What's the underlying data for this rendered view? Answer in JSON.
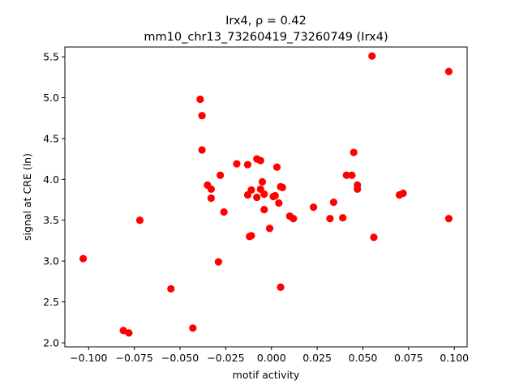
{
  "chart_data": {
    "type": "scatter",
    "title": "Irx4, ρ = 0.42",
    "subtitle": "mm10_chr13_73260419_73260749 (Irx4)",
    "xlabel": "motif activity",
    "ylabel": "signal at CRE (ln)",
    "xlim": [
      -0.113,
      0.107
    ],
    "ylim": [
      1.95,
      5.62
    ],
    "x_ticks": [
      -0.1,
      -0.075,
      -0.05,
      -0.025,
      0.0,
      0.025,
      0.05,
      0.075,
      0.1
    ],
    "x_tick_labels": [
      "−0.100",
      "−0.075",
      "−0.050",
      "−0.025",
      "0.000",
      "0.025",
      "0.050",
      "0.075",
      "0.100"
    ],
    "y_ticks": [
      2.0,
      2.5,
      3.0,
      3.5,
      4.0,
      4.5,
      5.0,
      5.5
    ],
    "y_tick_labels": [
      "2.0",
      "2.5",
      "3.0",
      "3.5",
      "4.0",
      "4.5",
      "5.0",
      "5.5"
    ],
    "grid": false,
    "marker_color": "#ff0000",
    "points": [
      {
        "x": -0.103,
        "y": 3.03
      },
      {
        "x": -0.081,
        "y": 2.15
      },
      {
        "x": -0.078,
        "y": 2.12
      },
      {
        "x": -0.072,
        "y": 3.5
      },
      {
        "x": -0.055,
        "y": 2.66
      },
      {
        "x": -0.043,
        "y": 2.18
      },
      {
        "x": -0.039,
        "y": 4.98
      },
      {
        "x": -0.038,
        "y": 4.78
      },
      {
        "x": -0.038,
        "y": 4.36
      },
      {
        "x": -0.035,
        "y": 3.93
      },
      {
        "x": -0.033,
        "y": 3.77
      },
      {
        "x": -0.033,
        "y": 3.88
      },
      {
        "x": -0.029,
        "y": 2.99
      },
      {
        "x": -0.028,
        "y": 4.05
      },
      {
        "x": -0.026,
        "y": 3.6
      },
      {
        "x": -0.019,
        "y": 4.19
      },
      {
        "x": -0.013,
        "y": 4.18
      },
      {
        "x": -0.013,
        "y": 3.81
      },
      {
        "x": -0.012,
        "y": 3.3
      },
      {
        "x": -0.011,
        "y": 3.31
      },
      {
        "x": -0.011,
        "y": 3.87
      },
      {
        "x": -0.008,
        "y": 3.78
      },
      {
        "x": -0.008,
        "y": 4.25
      },
      {
        "x": -0.006,
        "y": 4.23
      },
      {
        "x": -0.006,
        "y": 3.88
      },
      {
        "x": -0.005,
        "y": 3.97
      },
      {
        "x": -0.004,
        "y": 3.82
      },
      {
        "x": -0.004,
        "y": 3.63
      },
      {
        "x": -0.001,
        "y": 3.4
      },
      {
        "x": 0.001,
        "y": 3.79
      },
      {
        "x": 0.002,
        "y": 3.8
      },
      {
        "x": 0.003,
        "y": 4.15
      },
      {
        "x": 0.004,
        "y": 3.71
      },
      {
        "x": 0.005,
        "y": 2.68
      },
      {
        "x": 0.005,
        "y": 3.91
      },
      {
        "x": 0.006,
        "y": 3.9
      },
      {
        "x": 0.01,
        "y": 3.55
      },
      {
        "x": 0.012,
        "y": 3.52
      },
      {
        "x": 0.023,
        "y": 3.66
      },
      {
        "x": 0.032,
        "y": 3.52
      },
      {
        "x": 0.034,
        "y": 3.72
      },
      {
        "x": 0.039,
        "y": 3.53
      },
      {
        "x": 0.041,
        "y": 4.05
      },
      {
        "x": 0.044,
        "y": 4.05
      },
      {
        "x": 0.045,
        "y": 4.33
      },
      {
        "x": 0.047,
        "y": 3.93
      },
      {
        "x": 0.047,
        "y": 3.88
      },
      {
        "x": 0.055,
        "y": 5.51
      },
      {
        "x": 0.056,
        "y": 3.29
      },
      {
        "x": 0.07,
        "y": 3.81
      },
      {
        "x": 0.072,
        "y": 3.83
      },
      {
        "x": 0.097,
        "y": 5.32
      },
      {
        "x": 0.097,
        "y": 3.52
      }
    ]
  }
}
